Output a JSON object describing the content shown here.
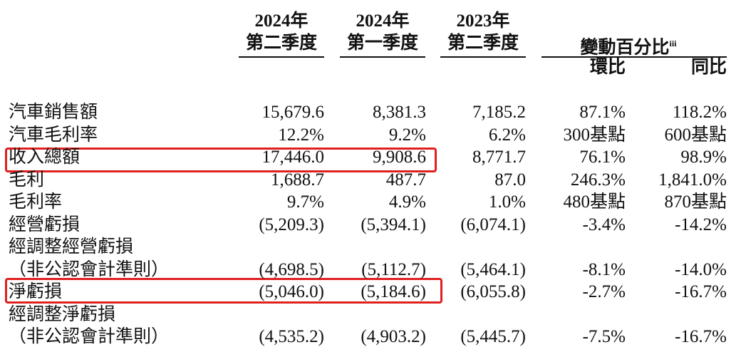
{
  "header": {
    "columns": [
      {
        "year": "2024年",
        "period": "第二季度"
      },
      {
        "year": "2024年",
        "period": "第一季度"
      },
      {
        "year": "2023年",
        "period": "第二季度"
      }
    ],
    "change": {
      "title": "變動百分比",
      "note": "iii",
      "sub": [
        "環比",
        "同比"
      ]
    }
  },
  "rows": [
    {
      "label": [
        "汽車銷售額"
      ],
      "cells": [
        "15,679.6",
        "8,381.3",
        "7,185.2",
        "87.1%",
        "118.2%"
      ]
    },
    {
      "label": [
        "汽車毛利率"
      ],
      "cells": [
        "12.2%",
        "9.2%",
        "6.2%",
        "300基點",
        "600基點"
      ]
    },
    {
      "label": [
        "收入總額"
      ],
      "cells": [
        "17,446.0",
        "9,908.6",
        "8,771.7",
        "76.1%",
        "98.9%"
      ]
    },
    {
      "label": [
        "毛利"
      ],
      "cells": [
        "1,688.7",
        "487.7",
        "87.0",
        "246.3%",
        "1,841.0%"
      ]
    },
    {
      "label": [
        "毛利率"
      ],
      "cells": [
        "9.7%",
        "4.9%",
        "1.0%",
        "480基點",
        "870基點"
      ]
    },
    {
      "label": [
        "經營虧損"
      ],
      "cells": [
        "(5,209.3)",
        "(5,394.1)",
        "(6,074.1)",
        "-3.4%",
        "-14.2%"
      ]
    },
    {
      "label": [
        "經調整經營虧損",
        "（非公認會計準則）"
      ],
      "cells": [
        "(4,698.5)",
        "(5,112.7)",
        "(5,464.1)",
        "-8.1%",
        "-14.0%"
      ]
    },
    {
      "label": [
        "淨虧損"
      ],
      "cells": [
        "(5,046.0)",
        "(5,184.6)",
        "(6,055.8)",
        "-2.7%",
        "-16.7%"
      ]
    },
    {
      "label": [
        "經調整淨虧損",
        "（非公認會計準則）"
      ],
      "cells": [
        "(4,535.2)",
        "(4,903.2)",
        "(5,445.7)",
        "-7.5%",
        "-16.7%"
      ]
    }
  ]
}
